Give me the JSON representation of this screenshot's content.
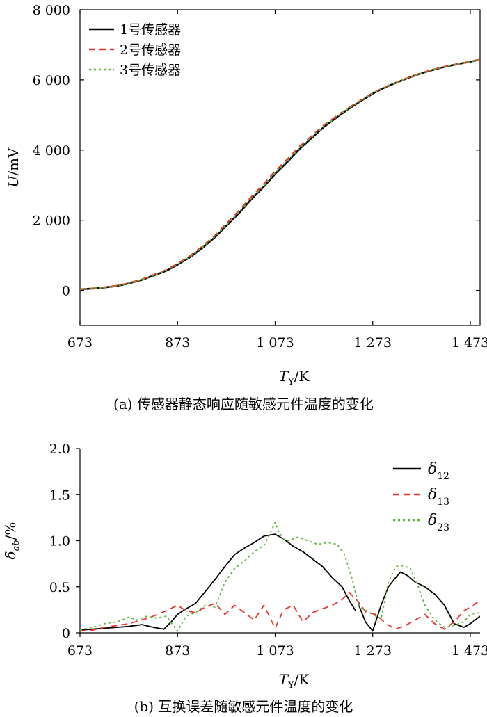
{
  "chart_data": [
    {
      "type": "line",
      "caption": "(a) 传感器静态响应随敏感元件温度的变化",
      "xlabel_main": "T",
      "xlabel_sub": "Y",
      "xlabel_unit": "/K",
      "ylabel_main": "U",
      "ylabel_unit": "/mV",
      "xlim": [
        673,
        1493
      ],
      "ylim": [
        -1000,
        8000
      ],
      "x_ticks": [
        673,
        873,
        1073,
        1273,
        1473
      ],
      "x_tick_labels": [
        "673",
        "873",
        "1 073",
        "1 273",
        "1 473"
      ],
      "y_ticks": [
        0,
        2000,
        4000,
        6000,
        8000
      ],
      "y_tick_labels": [
        "0",
        "2 000",
        "4 000",
        "6 000",
        "8 000"
      ],
      "legend_position": "top-left",
      "x": [
        673,
        700,
        723,
        750,
        773,
        800,
        823,
        850,
        873,
        900,
        923,
        950,
        973,
        1000,
        1023,
        1050,
        1073,
        1100,
        1123,
        1150,
        1173,
        1200,
        1223,
        1250,
        1273,
        1300,
        1323,
        1350,
        1373,
        1400,
        1423,
        1450,
        1473,
        1493
      ],
      "series": [
        {
          "name": "1号传感器",
          "color": "#000000",
          "dash": "solid",
          "values": [
            30,
            55,
            85,
            130,
            200,
            300,
            420,
            560,
            730,
            960,
            1200,
            1520,
            1840,
            2220,
            2580,
            2960,
            3320,
            3690,
            4030,
            4370,
            4660,
            4940,
            5170,
            5410,
            5610,
            5800,
            5930,
            6080,
            6190,
            6300,
            6380,
            6460,
            6520,
            6580
          ]
        },
        {
          "name": "2号传感器",
          "color": "#e8332b",
          "dash": "dashed",
          "values": [
            30,
            58,
            90,
            138,
            210,
            315,
            440,
            585,
            760,
            1000,
            1250,
            1570,
            1900,
            2290,
            2650,
            3040,
            3400,
            3770,
            4100,
            4430,
            4710,
            4980,
            5200,
            5430,
            5630,
            5810,
            5940,
            6090,
            6200,
            6310,
            6390,
            6460,
            6520,
            6580
          ]
        },
        {
          "name": "3号传感器",
          "color": "#5bb43a",
          "dash": "dotted",
          "values": [
            30,
            56,
            87,
            133,
            204,
            306,
            428,
            570,
            742,
            975,
            1220,
            1540,
            1865,
            2250,
            2610,
            2990,
            3350,
            3720,
            4060,
            4395,
            4680,
            4955,
            5185,
            5420,
            5620,
            5805,
            5935,
            6085,
            6195,
            6305,
            6385,
            6460,
            6520,
            6580
          ]
        }
      ]
    },
    {
      "type": "line",
      "caption": "(b) 互换误差随敏感元件温度的变化",
      "xlabel_main": "T",
      "xlabel_sub": "Y",
      "xlabel_unit": "/K",
      "ylabel_main": "δ",
      "ylabel_sub": "ab",
      "ylabel_unit": "/%",
      "xlim": [
        673,
        1493
      ],
      "ylim": [
        0,
        2.0
      ],
      "x_ticks": [
        673,
        873,
        1073,
        1273,
        1473
      ],
      "x_tick_labels": [
        "673",
        "873",
        "1 073",
        "1 273",
        "1 473"
      ],
      "y_ticks": [
        0,
        0.5,
        1.0,
        1.5,
        2.0
      ],
      "y_tick_labels": [
        "0",
        "0.5",
        "1.0",
        "1.5",
        "2.0"
      ],
      "legend_position": "top-right",
      "series": [
        {
          "name": "δ",
          "name_sub": "12",
          "color": "#000000",
          "dash": "solid",
          "x": [
            673,
            700,
            723,
            750,
            773,
            800,
            823,
            845,
            860,
            873,
            890,
            910,
            930,
            950,
            970,
            990,
            1010,
            1030,
            1050,
            1073,
            1090,
            1110,
            1130,
            1150,
            1170,
            1190,
            1210,
            1225,
            1238,
            null,
            1243,
            1258,
            1273,
            1290,
            1305,
            1320,
            1330,
            1345,
            1360,
            1380,
            1400,
            1420,
            1440,
            1460,
            1473,
            1493
          ],
          "values": [
            0.03,
            0.04,
            0.05,
            0.06,
            0.07,
            0.09,
            0.06,
            0.04,
            0.12,
            0.2,
            0.26,
            0.32,
            0.45,
            0.58,
            0.72,
            0.85,
            0.92,
            0.98,
            1.05,
            1.07,
            1.02,
            0.94,
            0.88,
            0.8,
            0.72,
            0.6,
            0.5,
            0.35,
            0.24,
            null,
            0.32,
            0.12,
            0.02,
            0.3,
            0.5,
            0.6,
            0.66,
            0.62,
            0.55,
            0.5,
            0.42,
            0.3,
            0.1,
            0.06,
            0.1,
            0.18
          ]
        },
        {
          "name": "δ",
          "name_sub": "13",
          "color": "#e8332b",
          "dash": "dashed",
          "x": [
            673,
            700,
            723,
            750,
            773,
            800,
            823,
            850,
            873,
            890,
            910,
            930,
            950,
            970,
            990,
            1010,
            1030,
            1050,
            1073,
            1090,
            1110,
            1130,
            1150,
            1170,
            1190,
            1210,
            1225,
            1243,
            1260,
            1280,
            1300,
            1320,
            1340,
            1360,
            1380,
            1400,
            1420,
            1440,
            1460,
            1480,
            1493
          ],
          "values": [
            0.02,
            0.03,
            0.06,
            0.08,
            0.1,
            0.14,
            0.18,
            0.24,
            0.3,
            0.24,
            0.22,
            0.28,
            0.32,
            0.2,
            0.3,
            0.22,
            0.14,
            0.3,
            0.05,
            0.25,
            0.3,
            0.12,
            0.22,
            0.26,
            0.3,
            0.36,
            0.44,
            0.34,
            0.22,
            0.2,
            0.1,
            0.04,
            0.08,
            0.14,
            0.2,
            0.1,
            0.04,
            0.12,
            0.24,
            0.3,
            0.36
          ]
        },
        {
          "name": "δ",
          "name_sub": "23",
          "color": "#5bb43a",
          "dash": "dotted",
          "x": [
            673,
            700,
            723,
            750,
            773,
            790,
            810,
            830,
            850,
            873,
            890,
            910,
            930,
            950,
            970,
            990,
            1010,
            1030,
            1050,
            1060,
            1073,
            1080,
            1090,
            1100,
            1120,
            1140,
            1160,
            1180,
            1200,
            1215,
            1230,
            1245,
            1258,
            1273,
            1290,
            1305,
            1320,
            1335,
            1350,
            1365,
            1380,
            1400,
            1420,
            1440,
            1460,
            1473,
            1493
          ],
          "values": [
            0.03,
            0.06,
            0.1,
            0.12,
            0.17,
            0.14,
            0.18,
            0.16,
            0.18,
            0.02,
            0.18,
            0.22,
            0.3,
            0.28,
            0.55,
            0.7,
            0.78,
            0.88,
            0.95,
            1.05,
            1.2,
            1.1,
            1.02,
            1.0,
            1.04,
            1.0,
            0.96,
            0.98,
            0.96,
            0.85,
            0.6,
            0.28,
            0.25,
            0.2,
            0.15,
            0.55,
            0.72,
            0.73,
            0.7,
            0.52,
            0.3,
            0.14,
            0.06,
            0.08,
            0.12,
            0.2,
            0.22
          ]
        }
      ]
    }
  ]
}
